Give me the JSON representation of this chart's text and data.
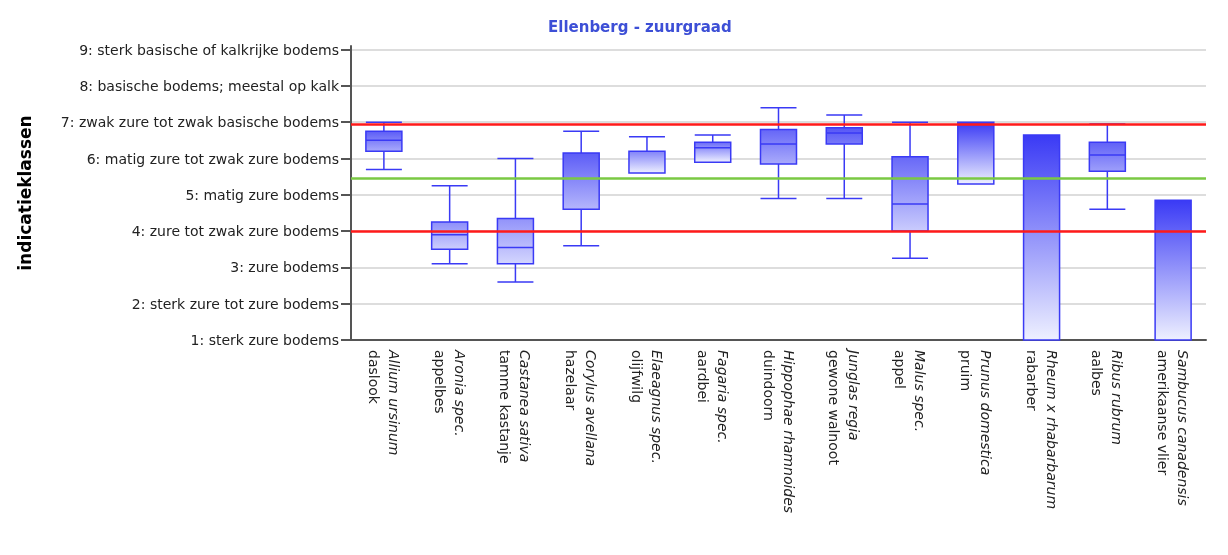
{
  "chart_data": {
    "type": "box",
    "title": "Ellenberg - zuurgraad",
    "ylabel": "indicatieklassen",
    "categories": [
      "Allium ursinum\ndaslook",
      "Aronia spec.\nappelbes",
      "Castanea sativa\ntamme kastanje",
      "Corylus avellana\nhazelaar",
      "Elaeagnus spec.\nolijfwilg",
      "Fagaria spec.\naardbei",
      "Hippophae rhamnoides\nduindoorn",
      "Junglas regia\ngewone walnoot",
      "Malus spec.\nappel",
      "Prunus domestica\npruim",
      "Rheum x rhabarbarum\nrabarber",
      "Ribus rubrum\naalbes",
      "Sambucus canadensis\namerikaanse vlier"
    ],
    "boxes": [
      {
        "low": 5.7,
        "q1": 6.2,
        "median": 6.5,
        "q3": 6.75,
        "high": 7.0
      },
      {
        "low": 3.1,
        "q1": 3.5,
        "median": 3.9,
        "q3": 4.25,
        "high": 5.25
      },
      {
        "low": 2.6,
        "q1": 3.1,
        "median": 3.55,
        "q3": 4.35,
        "high": 6.0
      },
      {
        "low": 3.6,
        "q1": 4.6,
        "median": 6.15,
        "q3": 6.15,
        "high": 6.75
      },
      {
        "low": 5.6,
        "q1": 5.6,
        "median": 6.2,
        "q3": 6.2,
        "high": 6.6
      },
      {
        "low": 5.9,
        "q1": 5.9,
        "median": 6.3,
        "q3": 6.45,
        "high": 6.65
      },
      {
        "low": 4.9,
        "q1": 5.85,
        "median": 6.4,
        "q3": 6.8,
        "high": 7.4
      },
      {
        "low": 4.9,
        "q1": 6.4,
        "median": 6.7,
        "q3": 6.85,
        "high": 7.2
      },
      {
        "low": 3.25,
        "q1": 4.0,
        "median": 4.75,
        "q3": 6.05,
        "high": 7.0
      },
      {
        "low": 5.3,
        "q1": 5.3,
        "median": 5.3,
        "q3": 7.0,
        "high": 7.0
      },
      {
        "low": 1,
        "q1": 1,
        "median": 6.65,
        "q3": 6.65,
        "high": 6.65
      },
      {
        "low": 4.6,
        "q1": 5.65,
        "median": 6.1,
        "q3": 6.45,
        "high": 6.95
      },
      {
        "low": 1,
        "q1": 1,
        "median": 4.85,
        "q3": 4.85,
        "high": 4.85
      }
    ],
    "color": "#3a3af5",
    "ylim": [
      1,
      9.1
    ],
    "yticks": [
      {
        "value": 1,
        "label": "1: sterk zure bodems"
      },
      {
        "value": 2,
        "label": "2: sterk zure tot zure bodems"
      },
      {
        "value": 3,
        "label": "3: zure bodems"
      },
      {
        "value": 4,
        "label": "4: zure tot zwak zure bodems"
      },
      {
        "value": 5,
        "label": "5: matig zure bodems"
      },
      {
        "value": 6,
        "label": "6: matig zure tot zwak zure bodems"
      },
      {
        "value": 7,
        "label": "7: zwak zure tot zwak basische bodems"
      },
      {
        "value": 8,
        "label": "8: basische bodems; meestal op kalk"
      },
      {
        "value": 9,
        "label": "9: sterk basische of kalkrijke bodems"
      }
    ],
    "ref_lines": [
      {
        "axis": "y",
        "value": 6.95,
        "color": "#ff1a1a"
      },
      {
        "axis": "y",
        "value": 5.45,
        "color": "#7ac943"
      },
      {
        "axis": "y",
        "value": 4.0,
        "color": "#ff1a1a"
      }
    ],
    "grid": "y"
  }
}
